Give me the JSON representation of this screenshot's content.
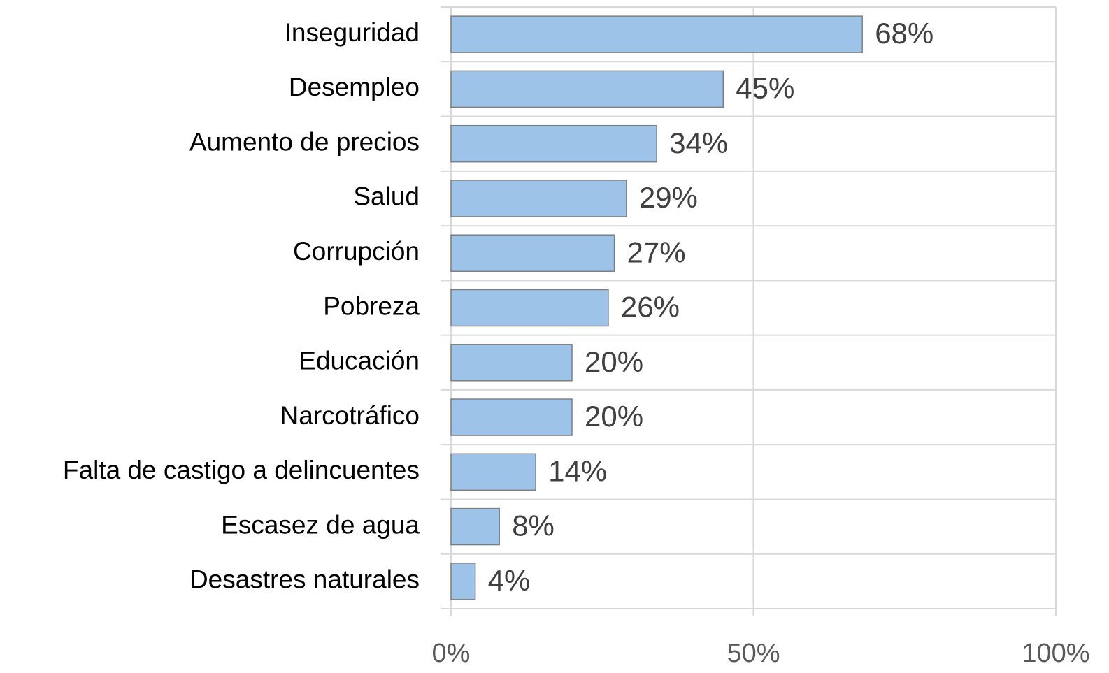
{
  "chart_data": {
    "type": "barh",
    "categories": [
      "Inseguridad",
      "Desempleo",
      "Aumento de precios",
      "Salud",
      "Corrupción",
      "Pobreza",
      "Educación",
      "Narcotráfico",
      "Falta de castigo a delincuentes",
      "Escasez de agua",
      "Desastres naturales"
    ],
    "values": [
      68,
      45,
      34,
      29,
      27,
      26,
      20,
      20,
      14,
      8,
      4
    ],
    "value_labels": [
      "68%",
      "45%",
      "34%",
      "29%",
      "27%",
      "26%",
      "20%",
      "20%",
      "14%",
      "8%",
      "4%"
    ],
    "color": "#9dc3e9",
    "xlim": [
      0,
      100
    ],
    "xticks": [
      {
        "value": 0,
        "label": "0%"
      },
      {
        "value": 50,
        "label": "50%"
      },
      {
        "value": 100,
        "label": "100%"
      }
    ],
    "grid": true
  }
}
